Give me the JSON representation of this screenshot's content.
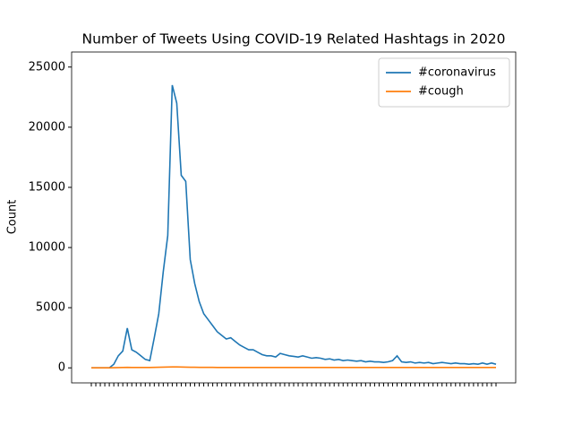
{
  "chart_data": {
    "type": "line",
    "title": "Number of Tweets Using COVID-19 Related Hashtags in 2020",
    "y_label": "Count",
    "categories": [
      null,
      null,
      null,
      null,
      null,
      null,
      null,
      null,
      null,
      null,
      null,
      null,
      null,
      null,
      null,
      null,
      null,
      null,
      null,
      null,
      null,
      null,
      null,
      null,
      null,
      null,
      null,
      null,
      null,
      null,
      null,
      null,
      null,
      null,
      null,
      null,
      null,
      null,
      null,
      null,
      null,
      null,
      null,
      null,
      null,
      null,
      null,
      null,
      null,
      null,
      null,
      null,
      null,
      null,
      null,
      null,
      null,
      null,
      null,
      null,
      null,
      null,
      null,
      null,
      null,
      null,
      null,
      null,
      null,
      null,
      null,
      null,
      null,
      null,
      null,
      null,
      null,
      null,
      null,
      null,
      null,
      null,
      null,
      null,
      null,
      null,
      null,
      null,
      null,
      null,
      null
    ],
    "series": [
      {
        "name": "#coronavirus",
        "color": "#1f77b4",
        "values": [
          0,
          0,
          0,
          0,
          0,
          300,
          1000,
          1400,
          3300,
          1500,
          1300,
          1000,
          700,
          600,
          2500,
          4500,
          8000,
          11000,
          23500,
          22000,
          16000,
          15500,
          9000,
          7000,
          5500,
          4500,
          4000,
          3500,
          3000,
          2700,
          2400,
          2500,
          2200,
          1900,
          1700,
          1500,
          1500,
          1300,
          1100,
          1000,
          1000,
          900,
          1200,
          1100,
          1000,
          950,
          900,
          1000,
          900,
          800,
          850,
          800,
          700,
          750,
          650,
          700,
          600,
          650,
          600,
          550,
          600,
          500,
          550,
          500,
          500,
          450,
          500,
          600,
          1000,
          500,
          450,
          500,
          400,
          450,
          400,
          450,
          350,
          400,
          450,
          400,
          350,
          400,
          350,
          350,
          300,
          350,
          300,
          400,
          300,
          400,
          300
        ]
      },
      {
        "name": "#cough",
        "color": "#ff7f0e",
        "values": [
          0,
          0,
          0,
          0,
          0,
          10,
          20,
          30,
          40,
          30,
          30,
          30,
          30,
          30,
          40,
          50,
          60,
          70,
          80,
          80,
          70,
          60,
          50,
          50,
          40,
          40,
          40,
          40,
          30,
          30,
          30,
          30,
          30,
          30,
          30,
          30,
          30,
          30,
          30,
          30,
          30,
          30,
          30,
          30,
          30,
          30,
          30,
          30,
          30,
          30,
          30,
          30,
          30,
          30,
          30,
          30,
          30,
          30,
          30,
          30,
          30,
          30,
          30,
          30,
          30,
          30,
          30,
          30,
          30,
          30,
          30,
          30,
          30,
          30,
          30,
          30,
          30,
          30,
          30,
          30,
          30,
          30,
          30,
          30,
          30,
          30,
          30,
          30,
          30,
          30,
          30
        ]
      }
    ],
    "ylim": [
      -1250,
      26250
    ],
    "yticks": [
      0,
      5000,
      10000,
      15000,
      20000,
      25000
    ],
    "legend": "upper right"
  }
}
